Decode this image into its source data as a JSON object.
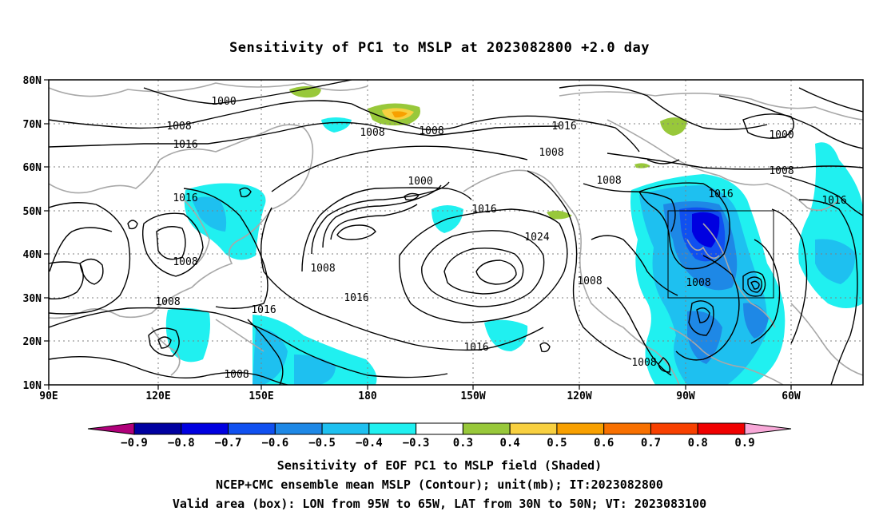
{
  "title": "Sensitivity of PC1 to MSLP at 2023082800 +2.0 day",
  "map": {
    "lon_labels": [
      "90E",
      "120E",
      "150E",
      "180",
      "150W",
      "120W",
      "90W",
      "60W"
    ],
    "lat_labels": [
      "80N",
      "70N",
      "60N",
      "50N",
      "40N",
      "30N",
      "20N",
      "10N"
    ],
    "contour_labels": [
      "1000",
      "1000",
      "1000",
      "1008",
      "1008",
      "1008",
      "1008",
      "1008",
      "1008",
      "1008",
      "1008",
      "1008",
      "1008",
      "1008",
      "1016",
      "1016",
      "1016",
      "1016",
      "1016",
      "1016",
      "1016",
      "1016",
      "1024"
    ],
    "valid_box": {
      "lon_west": "95W",
      "lon_east": "65W",
      "lat_south": "30N",
      "lat_north": "50N"
    }
  },
  "colorbar": {
    "labels": [
      "−0.9",
      "−0.8",
      "−0.7",
      "−0.6",
      "−0.5",
      "−0.4",
      "−0.3",
      "0.3",
      "0.4",
      "0.5",
      "0.6",
      "0.7",
      "0.8",
      "0.9"
    ],
    "colors": [
      "#b0007a",
      "#0000a0",
      "#0000e0",
      "#1050f0",
      "#1e88e6",
      "#1ec0f0",
      "#20f0f0",
      "#ffffff",
      "#98c83a",
      "#f8d040",
      "#f8a000",
      "#f87000",
      "#f84000",
      "#f00000",
      "#f8a8d8"
    ]
  },
  "captions": {
    "line1": "Sensitivity of EOF PC1 to MSLP field (Shaded)",
    "line2": "NCEP+CMC ensemble mean MSLP (Contour); unit(mb); IT:2023082800",
    "line3": "Valid area (box): LON from 95W to 65W, LAT from 30N to 50N; VT: 2023083100"
  }
}
